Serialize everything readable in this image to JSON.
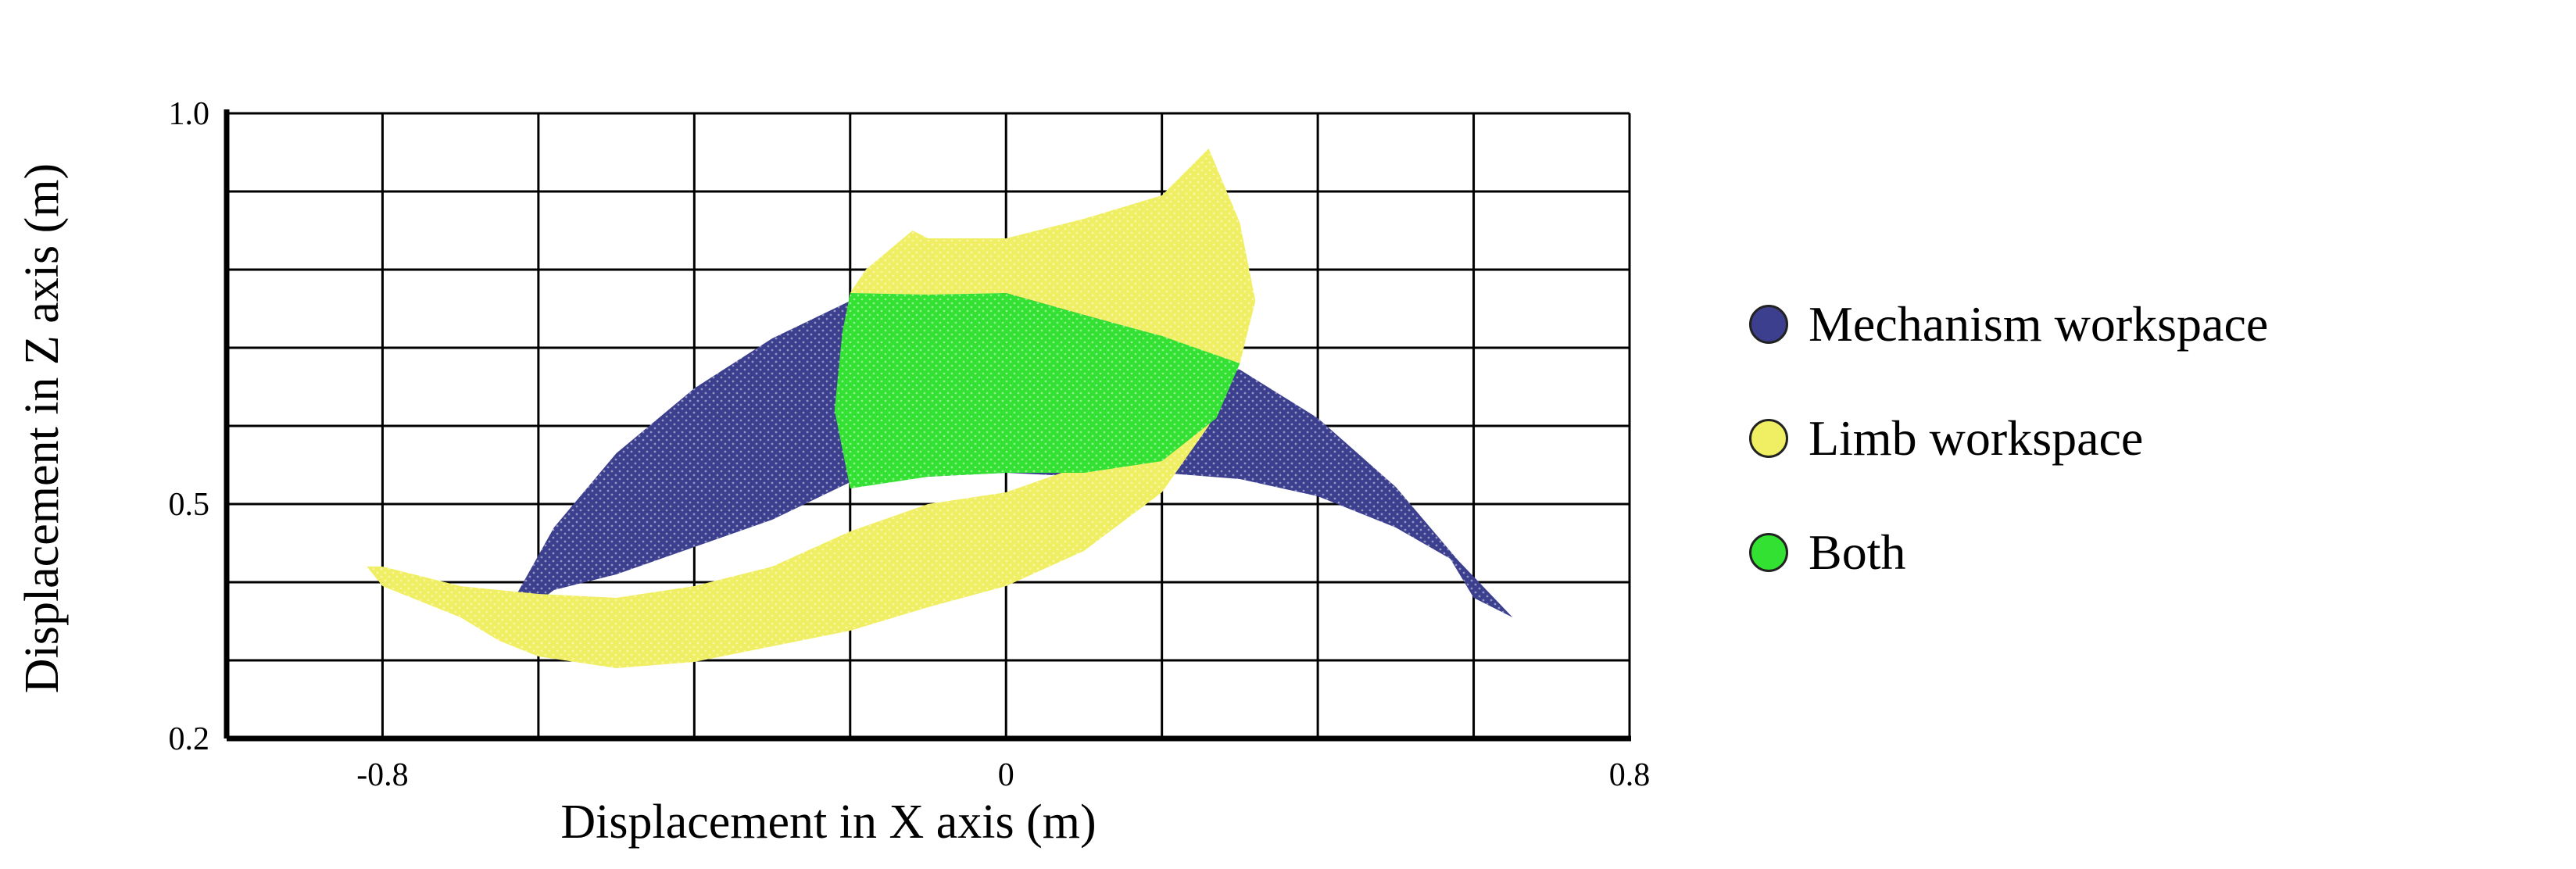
{
  "chart_data": {
    "type": "area",
    "xlabel": "Displacement in X axis (m)",
    "ylabel": "Displacement in Z axis (m)",
    "xlim": [
      -1.0,
      0.8
    ],
    "ylim": [
      0.2,
      1.0
    ],
    "x_ticks": [
      {
        "value": -0.8,
        "label": "-0.8"
      },
      {
        "value": 0,
        "label": "0"
      },
      {
        "value": 0.8,
        "label": "0.8"
      }
    ],
    "y_ticks": [
      {
        "value": 0.2,
        "label": "0.2"
      },
      {
        "value": 0.5,
        "label": "0.5"
      },
      {
        "value": 1.0,
        "label": "1.0"
      }
    ],
    "grid": true,
    "grid_x_step": 0.2,
    "grid_y_step": 0.1,
    "legend_position": "right",
    "series": [
      {
        "name": "Mechanism workspace",
        "color": "#3b3f8e",
        "shape": [
          [
            -0.2,
            0.76
          ],
          [
            -0.3,
            0.712
          ],
          [
            -0.4,
            0.648
          ],
          [
            -0.5,
            0.565
          ],
          [
            -0.58,
            0.47
          ],
          [
            -0.65,
            0.345
          ],
          [
            -0.62,
            0.36
          ],
          [
            -0.58,
            0.39
          ],
          [
            -0.5,
            0.41
          ],
          [
            -0.4,
            0.445
          ],
          [
            -0.3,
            0.48
          ],
          [
            -0.2,
            0.528
          ],
          [
            -0.1,
            0.535
          ],
          [
            0,
            0.54
          ],
          [
            0.1,
            0.535
          ],
          [
            0.2,
            0.54
          ],
          [
            0.3,
            0.532
          ],
          [
            0.4,
            0.51
          ],
          [
            0.5,
            0.47
          ],
          [
            0.57,
            0.43
          ],
          [
            0.6,
            0.38
          ],
          [
            0.65,
            0.355
          ],
          [
            0.58,
            0.428
          ],
          [
            0.5,
            0.522
          ],
          [
            0.4,
            0.61
          ],
          [
            0.3,
            0.672
          ],
          [
            0.2,
            0.7
          ],
          [
            0.1,
            0.75
          ],
          [
            0,
            0.77
          ],
          [
            -0.1,
            0.765
          ],
          [
            -0.2,
            0.76
          ]
        ]
      },
      {
        "name": "Limb workspace",
        "color": "#f0ee63",
        "shape": [
          [
            -0.2,
            0.77
          ],
          [
            -0.18,
            0.8
          ],
          [
            -0.12,
            0.85
          ],
          [
            -0.1,
            0.84
          ],
          [
            0,
            0.84
          ],
          [
            0.1,
            0.865
          ],
          [
            0.2,
            0.895
          ],
          [
            0.26,
            0.955
          ],
          [
            0.3,
            0.86
          ],
          [
            0.32,
            0.76
          ],
          [
            0.3,
            0.68
          ],
          [
            0.26,
            0.6
          ],
          [
            0.2,
            0.515
          ],
          [
            0.1,
            0.44
          ],
          [
            0,
            0.395
          ],
          [
            -0.1,
            0.368
          ],
          [
            -0.2,
            0.338
          ],
          [
            -0.3,
            0.318
          ],
          [
            -0.4,
            0.298
          ],
          [
            -0.5,
            0.29
          ],
          [
            -0.6,
            0.305
          ],
          [
            -0.65,
            0.325
          ],
          [
            -0.7,
            0.355
          ],
          [
            -0.8,
            0.395
          ],
          [
            -0.82,
            0.42
          ],
          [
            -0.8,
            0.42
          ],
          [
            -0.7,
            0.395
          ],
          [
            -0.6,
            0.385
          ],
          [
            -0.5,
            0.38
          ],
          [
            -0.4,
            0.395
          ],
          [
            -0.3,
            0.42
          ],
          [
            -0.2,
            0.465
          ],
          [
            -0.1,
            0.5
          ],
          [
            0,
            0.515
          ],
          [
            0.1,
            0.55
          ],
          [
            0.2,
            0.6
          ],
          [
            0.26,
            0.68
          ],
          [
            0.25,
            0.69
          ],
          [
            0.2,
            0.715
          ],
          [
            0.1,
            0.742
          ],
          [
            0,
            0.77
          ],
          [
            -0.1,
            0.768
          ],
          [
            -0.2,
            0.77
          ]
        ]
      },
      {
        "name": "Both",
        "color": "#33e133",
        "shape": [
          [
            -0.2,
            0.77
          ],
          [
            -0.1,
            0.768
          ],
          [
            0,
            0.77
          ],
          [
            0.1,
            0.742
          ],
          [
            0.2,
            0.715
          ],
          [
            0.3,
            0.68
          ],
          [
            0.27,
            0.61
          ],
          [
            0.2,
            0.555
          ],
          [
            0.1,
            0.54
          ],
          [
            0,
            0.54
          ],
          [
            -0.1,
            0.535
          ],
          [
            -0.2,
            0.52
          ],
          [
            -0.22,
            0.62
          ],
          [
            -0.21,
            0.72
          ],
          [
            -0.2,
            0.77
          ]
        ]
      }
    ]
  }
}
